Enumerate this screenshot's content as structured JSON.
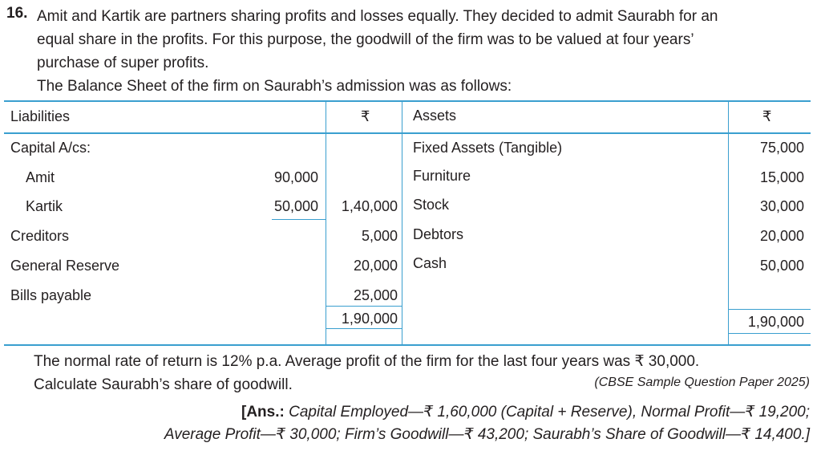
{
  "question": {
    "number": "16.",
    "line1": "Amit and Kartik are partners sharing profits and losses equally. They decided to admit Saurabh for an",
    "line2": "equal share in the profits. For this purpose, the goodwill of the firm was to be valued at four years’",
    "line3": "purchase of super profits.",
    "intro": "The Balance Sheet of the firm on Saurabh’s admission was as follows:"
  },
  "balance_sheet": {
    "headers": {
      "liabilities": "Liabilities",
      "rupee1": "₹",
      "assets": "Assets",
      "rupee2": "₹"
    },
    "liabilities": {
      "capital_label": "Capital A/cs:",
      "amit": {
        "label": "Amit",
        "value": "90,000"
      },
      "kartik": {
        "label": "Kartik",
        "value": "50,000",
        "total": "1,40,000"
      },
      "creditors": {
        "label": "Creditors",
        "value": "5,000"
      },
      "general_reserve": {
        "label": "General Reserve",
        "value": "20,000"
      },
      "bills_payable": {
        "label": "Bills payable",
        "value": "25,000"
      },
      "total": "1,90,000"
    },
    "assets": {
      "fixed_assets": {
        "label": "Fixed Assets (Tangible)",
        "value": "75,000"
      },
      "furniture": {
        "label": "Furniture",
        "value": "15,000"
      },
      "stock": {
        "label": "Stock",
        "value": "30,000"
      },
      "debtors": {
        "label": "Debtors",
        "value": "20,000"
      },
      "cash": {
        "label": "Cash",
        "value": "50,000"
      },
      "total": "1,90,000"
    },
    "rule_color": "#3a9fcf"
  },
  "normal_rate": {
    "line1": "The normal rate of return is 12% p.a. Average profit of the firm for the last four years was ₹ 30,000.",
    "line2": "Calculate Saurabh’s share of goodwill.",
    "source": "(CBSE Sample Question Paper 2025)"
  },
  "answer": {
    "prefix": "[Ans.:",
    "line1": "Capital Employed—₹ 1,60,000 (Capital + Reserve), Normal Profit—₹ 19,200;",
    "line2": "Average Profit—₹ 30,000; Firm’s Goodwill—₹ 43,200; Saurabh’s Share of Goodwill—₹ 14,400.]"
  }
}
